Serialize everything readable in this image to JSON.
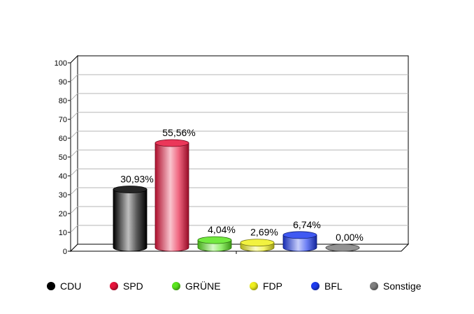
{
  "chart_data": {
    "type": "bar",
    "categories": [
      "CDU",
      "SPD",
      "GRÜNE",
      "FDP",
      "BFL",
      "Sonstige"
    ],
    "values": [
      30.93,
      55.56,
      4.04,
      2.69,
      6.74,
      0.0
    ],
    "data_labels": [
      "30,93%",
      "55,56%",
      "4,04%",
      "2,69%",
      "6,74%",
      "0,00%"
    ],
    "colors": [
      "#000000",
      "#e8143c",
      "#5ae61e",
      "#f0f01e",
      "#1e3cf0",
      "#808080"
    ],
    "ylim": [
      0,
      100
    ],
    "y_ticks": [
      "0",
      "10",
      "20",
      "30",
      "40",
      "50",
      "60",
      "70",
      "80",
      "90",
      "100"
    ],
    "grid": true,
    "legend": "bottom"
  }
}
